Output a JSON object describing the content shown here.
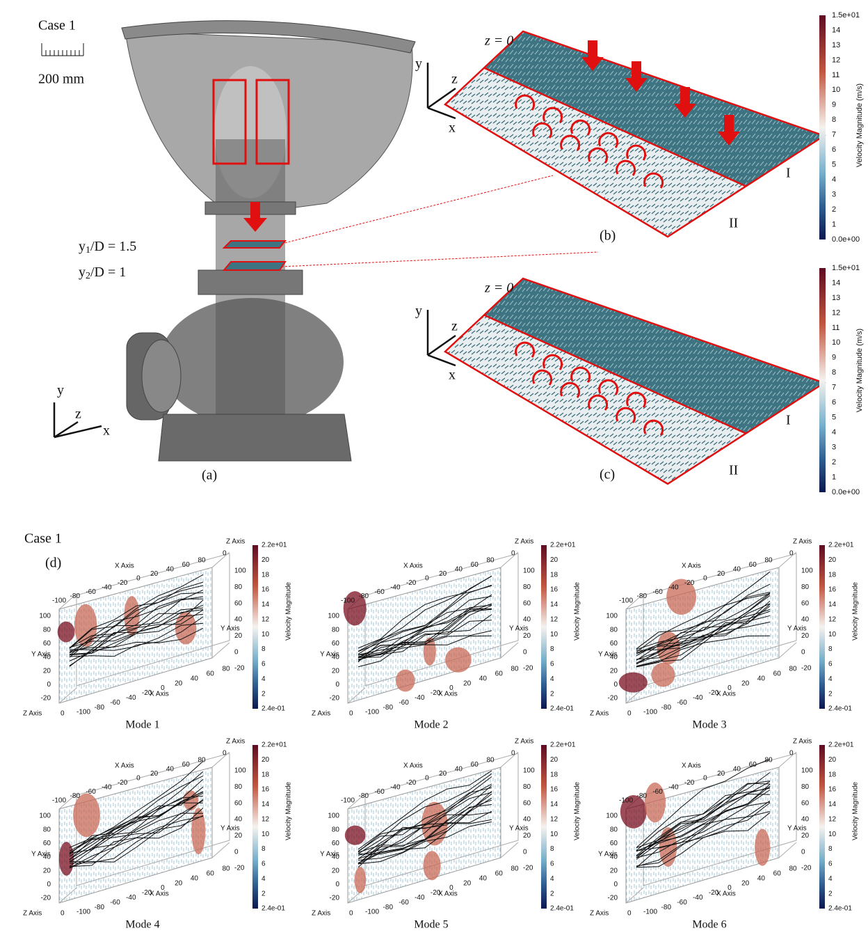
{
  "top": {
    "case_label": "Case 1",
    "scale_label": "200 mm",
    "plane_labels": [
      {
        "base": "y",
        "sub": "1",
        "rest": "/D = 1.5"
      },
      {
        "base": "y",
        "sub": "2",
        "rest": "/D = 1"
      }
    ],
    "triad": {
      "y": "y",
      "z": "z",
      "x": "x"
    },
    "panel_a_label": "(a)",
    "slices": [
      {
        "label": "(b)",
        "plane": "z = 0",
        "region_1": "I",
        "region_2": "II"
      },
      {
        "label": "(c)",
        "plane": "z = 0",
        "region_1": "I",
        "region_2": "II"
      }
    ],
    "colorbar": {
      "title": "Velocity Magnitude (m/s)",
      "ticks": [
        "1.5e+01",
        "14",
        "13",
        "12",
        "11",
        "10",
        "9",
        "8",
        "7",
        "6",
        "5",
        "4",
        "3",
        "2",
        "1",
        "0.0e+00"
      ]
    }
  },
  "bottom": {
    "case_label": "Case 1",
    "panel_label": "(d)",
    "modes": [
      "Mode 1",
      "Mode 2",
      "Mode 3",
      "Mode 4",
      "Mode 5",
      "Mode 6"
    ],
    "axes": {
      "x_label": "X Axis",
      "y_label": "Y Axis",
      "z_label": "Z Axis",
      "x_ticks": [
        -100,
        -80,
        -60,
        -40,
        -20,
        0,
        20,
        40,
        60,
        80
      ],
      "y_ticks": [
        100,
        80,
        60,
        40,
        20,
        0,
        -20
      ],
      "z_ticks": [
        0
      ]
    },
    "colorbar": {
      "title": "Velocity Magnitude",
      "ticks": [
        "2.2e+01",
        "20",
        "18",
        "16",
        "14",
        "12",
        "10",
        "8",
        "6",
        "4",
        "2",
        "2.4e-01"
      ]
    }
  }
}
